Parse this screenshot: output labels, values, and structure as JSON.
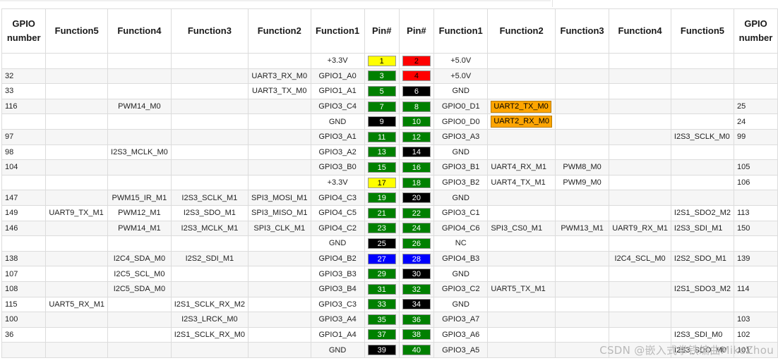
{
  "headers": [
    "GPIO number",
    "Function5",
    "Function4",
    "Function3",
    "Function2",
    "Function1",
    "Pin#",
    "Pin#",
    "Function1",
    "Function2",
    "Function3",
    "Function4",
    "Function5",
    "GPIO number"
  ],
  "colors": {
    "yellow": "#ffff00",
    "red": "#ff0000",
    "green": "#008000",
    "black": "#000000",
    "blue": "#0000ff",
    "orange": "#ffa500"
  },
  "rows": [
    {
      "lg": "",
      "lf5": "",
      "lf4": "",
      "lf3": "",
      "lf2": "",
      "lf1": "+3.3V",
      "lp": "1",
      "lpc": "yellow",
      "rp": "2",
      "rpc": "red",
      "rf1": "+5.0V",
      "rf2": "",
      "rf2hl": false,
      "rf3": "",
      "rf4": "",
      "rf5": "",
      "rg": ""
    },
    {
      "lg": "32",
      "lf5": "",
      "lf4": "",
      "lf3": "",
      "lf2": "UART3_RX_M0",
      "lf1": "GPIO1_A0",
      "lp": "3",
      "lpc": "green",
      "rp": "4",
      "rpc": "red",
      "rf1": "+5.0V",
      "rf2": "",
      "rf2hl": false,
      "rf3": "",
      "rf4": "",
      "rf5": "",
      "rg": ""
    },
    {
      "lg": "33",
      "lf5": "",
      "lf4": "",
      "lf3": "",
      "lf2": "UART3_TX_M0",
      "lf1": "GPIO1_A1",
      "lp": "5",
      "lpc": "green",
      "rp": "6",
      "rpc": "black",
      "rf1": "GND",
      "rf2": "",
      "rf2hl": false,
      "rf3": "",
      "rf4": "",
      "rf5": "",
      "rg": ""
    },
    {
      "lg": "116",
      "lf5": "",
      "lf4": "PWM14_M0",
      "lf3": "",
      "lf2": "",
      "lf1": "GPIO3_C4",
      "lp": "7",
      "lpc": "green",
      "rp": "8",
      "rpc": "green",
      "rf1": "GPIO0_D1",
      "rf2": "UART2_TX_M0",
      "rf2hl": true,
      "rf3": "",
      "rf4": "",
      "rf5": "",
      "rg": "25"
    },
    {
      "lg": "",
      "lf5": "",
      "lf4": "",
      "lf3": "",
      "lf2": "",
      "lf1": "GND",
      "lp": "9",
      "lpc": "black",
      "rp": "10",
      "rpc": "green",
      "rf1": "GPIO0_D0",
      "rf2": "UART2_RX_M0",
      "rf2hl": true,
      "rf3": "",
      "rf4": "",
      "rf5": "",
      "rg": "24"
    },
    {
      "lg": "97",
      "lf5": "",
      "lf4": "",
      "lf3": "",
      "lf2": "",
      "lf1": "GPIO3_A1",
      "lp": "11",
      "lpc": "green",
      "rp": "12",
      "rpc": "green",
      "rf1": "GPIO3_A3",
      "rf2": "",
      "rf2hl": false,
      "rf3": "",
      "rf4": "",
      "rf5": "I2S3_SCLK_M0",
      "rg": "99"
    },
    {
      "lg": "98",
      "lf5": "",
      "lf4": "I2S3_MCLK_M0",
      "lf3": "",
      "lf2": "",
      "lf1": "GPIO3_A2",
      "lp": "13",
      "lpc": "green",
      "rp": "14",
      "rpc": "black",
      "rf1": "GND",
      "rf2": "",
      "rf2hl": false,
      "rf3": "",
      "rf4": "",
      "rf5": "",
      "rg": ""
    },
    {
      "lg": "104",
      "lf5": "",
      "lf4": "",
      "lf3": "",
      "lf2": "",
      "lf1": "GPIO3_B0",
      "lp": "15",
      "lpc": "green",
      "rp": "16",
      "rpc": "green",
      "rf1": "GPIO3_B1",
      "rf2": "UART4_RX_M1",
      "rf2hl": false,
      "rf3": "PWM8_M0",
      "rf4": "",
      "rf5": "",
      "rg": "105"
    },
    {
      "lg": "",
      "lf5": "",
      "lf4": "",
      "lf3": "",
      "lf2": "",
      "lf1": "+3.3V",
      "lp": "17",
      "lpc": "yellow",
      "rp": "18",
      "rpc": "green",
      "rf1": "GPIO3_B2",
      "rf2": "UART4_TX_M1",
      "rf2hl": false,
      "rf3": "PWM9_M0",
      "rf4": "",
      "rf5": "",
      "rg": "106"
    },
    {
      "lg": "147",
      "lf5": "",
      "lf4": "PWM15_IR_M1",
      "lf3": "I2S3_SCLK_M1",
      "lf2": "SPI3_MOSI_M1",
      "lf1": "GPIO4_C3",
      "lp": "19",
      "lpc": "green",
      "rp": "20",
      "rpc": "black",
      "rf1": "GND",
      "rf2": "",
      "rf2hl": false,
      "rf3": "",
      "rf4": "",
      "rf5": "",
      "rg": ""
    },
    {
      "lg": "149",
      "lf5": "UART9_TX_M1",
      "lf4": "PWM12_M1",
      "lf3": "I2S3_SDO_M1",
      "lf2": "SPI3_MISO_M1",
      "lf1": "GPIO4_C5",
      "lp": "21",
      "lpc": "green",
      "rp": "22",
      "rpc": "green",
      "rf1": "GPIO3_C1",
      "rf2": "",
      "rf2hl": false,
      "rf3": "",
      "rf4": "",
      "rf5": "I2S1_SDO2_M2",
      "rg": "113"
    },
    {
      "lg": "146",
      "lf5": "",
      "lf4": "PWM14_M1",
      "lf3": "I2S3_MCLK_M1",
      "lf2": "SPI3_CLK_M1",
      "lf1": "GPIO4_C2",
      "lp": "23",
      "lpc": "green",
      "rp": "24",
      "rpc": "green",
      "rf1": "GPIO4_C6",
      "rf2": "SPI3_CS0_M1",
      "rf2hl": false,
      "rf3": "PWM13_M1",
      "rf4": "UART9_RX_M1",
      "rf5": "I2S3_SDI_M1",
      "rg": "150"
    },
    {
      "lg": "",
      "lf5": "",
      "lf4": "",
      "lf3": "",
      "lf2": "",
      "lf1": "GND",
      "lp": "25",
      "lpc": "black",
      "rp": "26",
      "rpc": "green",
      "rf1": "NC",
      "rf2": "",
      "rf2hl": false,
      "rf3": "",
      "rf4": "",
      "rf5": "",
      "rg": ""
    },
    {
      "lg": "138",
      "lf5": "",
      "lf4": "I2C4_SDA_M0",
      "lf3": "I2S2_SDI_M1",
      "lf2": "",
      "lf1": "GPIO4_B2",
      "lp": "27",
      "lpc": "blue",
      "rp": "28",
      "rpc": "blue",
      "rf1": "GPIO4_B3",
      "rf2": "",
      "rf2hl": false,
      "rf3": "",
      "rf4": "I2C4_SCL_M0",
      "rf5": "I2S2_SDO_M1",
      "rg": "139"
    },
    {
      "lg": "107",
      "lf5": "",
      "lf4": "I2C5_SCL_M0",
      "lf3": "",
      "lf2": "",
      "lf1": "GPIO3_B3",
      "lp": "29",
      "lpc": "green",
      "rp": "30",
      "rpc": "black",
      "rf1": "GND",
      "rf2": "",
      "rf2hl": false,
      "rf3": "",
      "rf4": "",
      "rf5": "",
      "rg": ""
    },
    {
      "lg": "108",
      "lf5": "",
      "lf4": "I2C5_SDA_M0",
      "lf3": "",
      "lf2": "",
      "lf1": "GPIO3_B4",
      "lp": "31",
      "lpc": "green",
      "rp": "32",
      "rpc": "green",
      "rf1": "GPIO3_C2",
      "rf2": "UART5_TX_M1",
      "rf2hl": false,
      "rf3": "",
      "rf4": "",
      "rf5": "I2S1_SDO3_M2",
      "rg": "114"
    },
    {
      "lg": "115",
      "lf5": "UART5_RX_M1",
      "lf4": "",
      "lf3": "I2S1_SCLK_RX_M2",
      "lf2": "",
      "lf1": "GPIO3_C3",
      "lp": "33",
      "lpc": "green",
      "rp": "34",
      "rpc": "black",
      "rf1": "GND",
      "rf2": "",
      "rf2hl": false,
      "rf3": "",
      "rf4": "",
      "rf5": "",
      "rg": ""
    },
    {
      "lg": "100",
      "lf5": "",
      "lf4": "",
      "lf3": "I2S3_LRCK_M0",
      "lf2": "",
      "lf1": "GPIO3_A4",
      "lp": "35",
      "lpc": "green",
      "rp": "36",
      "rpc": "green",
      "rf1": "GPIO3_A7",
      "rf2": "",
      "rf2hl": false,
      "rf3": "",
      "rf4": "",
      "rf5": "",
      "rg": "103"
    },
    {
      "lg": "36",
      "lf5": "",
      "lf4": "",
      "lf3": "I2S1_SCLK_RX_M0",
      "lf2": "",
      "lf1": "GPIO1_A4",
      "lp": "37",
      "lpc": "green",
      "rp": "38",
      "rpc": "green",
      "rf1": "GPIO3_A6",
      "rf2": "",
      "rf2hl": false,
      "rf3": "",
      "rf4": "",
      "rf5": "I2S3_SDI_M0",
      "rg": "102"
    },
    {
      "lg": "",
      "lf5": "",
      "lf4": "",
      "lf3": "",
      "lf2": "",
      "lf1": "GND",
      "lp": "39",
      "lpc": "black",
      "rp": "40",
      "rpc": "green",
      "rf1": "GPIO3_A5",
      "rf2": "",
      "rf2hl": false,
      "rf3": "",
      "rf4": "",
      "rf5": "I2S3_SDO_M0",
      "rg": "101"
    }
  ],
  "watermark": "CSDN @嵌入式拳铁编曲MikeZhou"
}
